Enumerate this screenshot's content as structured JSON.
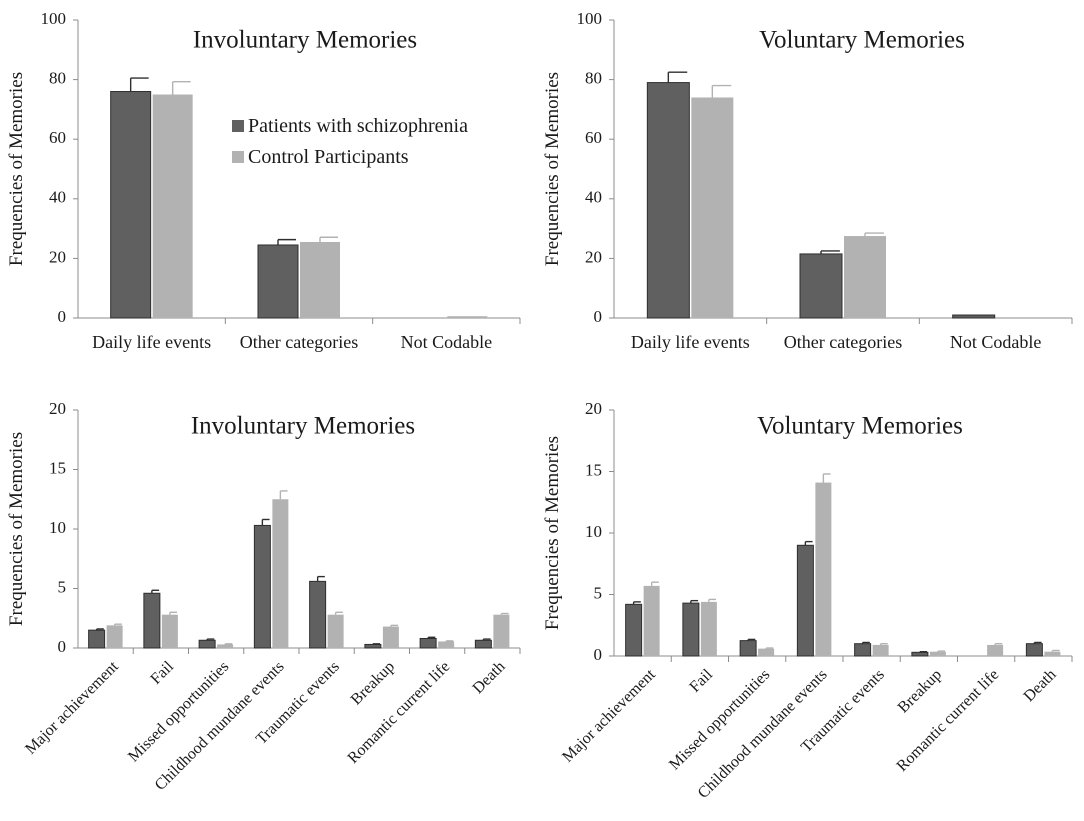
{
  "colors": {
    "patients": "#606060",
    "patients_edge": "#2e2e2e",
    "controls": "#b2b2b2",
    "axis": "#8c8c8c",
    "text": "#1a1a1a"
  },
  "legend": {
    "patients_label": "Patients with schizophrenia",
    "controls_label": "Control Participants"
  },
  "chart_data": [
    {
      "type": "bar",
      "title": "Involuntary Memories",
      "ylabel": "Frequencies of Memories",
      "xlabel": "",
      "ylim": [
        0,
        100
      ],
      "yticks": [
        0,
        20,
        40,
        60,
        80,
        100
      ],
      "categories": [
        "Daily life events",
        "Other categories",
        "Not Codable"
      ],
      "series": [
        {
          "name": "Patients with schizophrenia",
          "values": [
            76,
            24.5,
            0
          ],
          "errors": [
            4.5,
            1.8,
            0
          ]
        },
        {
          "name": "Control Participants",
          "values": [
            75,
            25.5,
            0.6
          ],
          "errors": [
            4.3,
            1.6,
            0
          ]
        }
      ],
      "rotate_labels": false
    },
    {
      "type": "bar",
      "title": "Voluntary Memories",
      "ylabel": "Frequencies of Memories",
      "xlabel": "",
      "ylim": [
        0,
        100
      ],
      "yticks": [
        0,
        20,
        40,
        60,
        80,
        100
      ],
      "categories": [
        "Daily life events",
        "Other categories",
        "Not Codable"
      ],
      "series": [
        {
          "name": "Patients with schizophrenia",
          "values": [
            79,
            21.5,
            1
          ],
          "errors": [
            3.5,
            1,
            0
          ]
        },
        {
          "name": "Control Participants",
          "values": [
            74,
            27.5,
            0
          ],
          "errors": [
            4,
            1,
            0
          ]
        }
      ],
      "rotate_labels": false
    },
    {
      "type": "bar",
      "title": "Involuntary Memories",
      "ylabel": "Frequencies of Memories",
      "xlabel": "",
      "ylim": [
        0,
        20
      ],
      "yticks": [
        0,
        5,
        10,
        15,
        20
      ],
      "categories": [
        "Major achievement",
        "Fail",
        "Missed opportunities",
        "Childhood mundane events",
        "Traumatic events",
        "Breakup",
        "Romantic current life",
        "Death"
      ],
      "series": [
        {
          "name": "Patients with schizophrenia",
          "values": [
            1.5,
            4.6,
            0.65,
            10.3,
            5.6,
            0.3,
            0.8,
            0.65
          ],
          "errors": [
            0.1,
            0.25,
            0.1,
            0.5,
            0.4,
            0.05,
            0.1,
            0.1
          ]
        },
        {
          "name": "Control Participants",
          "values": [
            1.9,
            2.8,
            0.3,
            12.5,
            2.8,
            1.8,
            0.55,
            2.8
          ],
          "errors": [
            0.1,
            0.2,
            0.05,
            0.7,
            0.2,
            0.1,
            0.05,
            0.1
          ]
        }
      ],
      "rotate_labels": true
    },
    {
      "type": "bar",
      "title": "Voluntary Memories",
      "ylabel": "Frequencies of Memories",
      "xlabel": "",
      "ylim": [
        0,
        20
      ],
      "yticks": [
        0,
        5,
        10,
        15,
        20
      ],
      "categories": [
        "Major achievement",
        "Fail",
        "Missed opportunities",
        "Childhood mundane events",
        "Traumatic events",
        "Breakup",
        "Romantic current life",
        "Death"
      ],
      "series": [
        {
          "name": "Patients with schizophrenia",
          "values": [
            4.2,
            4.3,
            1.25,
            9,
            1,
            0.3,
            0,
            1
          ],
          "errors": [
            0.2,
            0.2,
            0.1,
            0.3,
            0.1,
            0.05,
            0,
            0.1
          ]
        },
        {
          "name": "Control Participants",
          "values": [
            5.7,
            4.4,
            0.6,
            14.1,
            0.9,
            0.35,
            0.9,
            0.35
          ],
          "errors": [
            0.3,
            0.2,
            0.05,
            0.7,
            0.1,
            0.05,
            0.1,
            0.1
          ]
        }
      ],
      "rotate_labels": true
    }
  ]
}
